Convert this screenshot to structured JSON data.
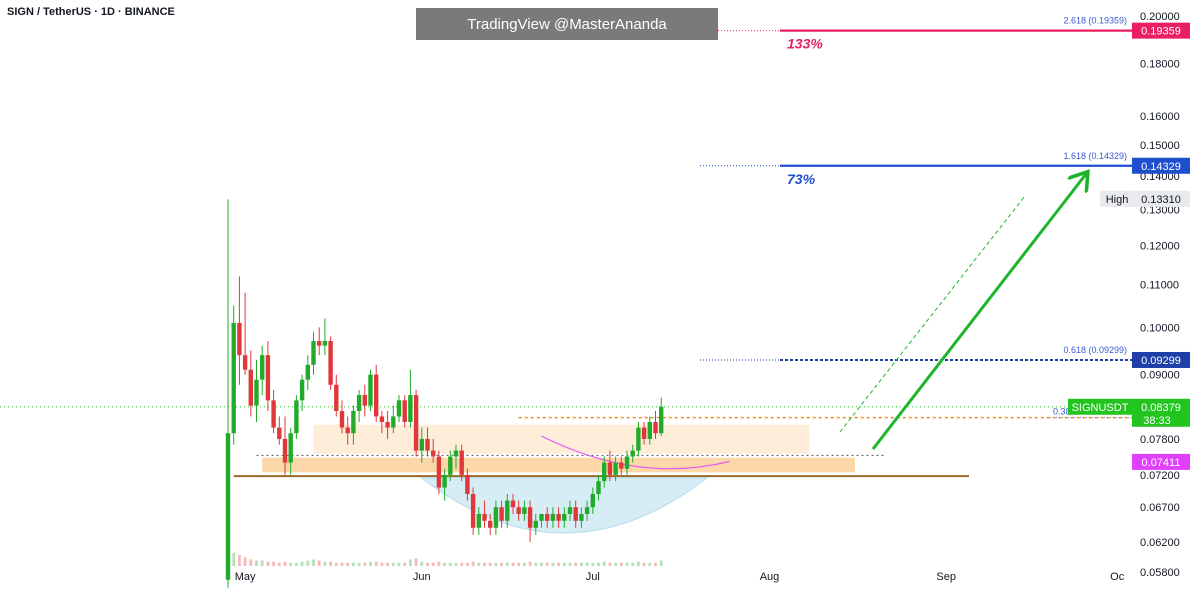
{
  "header": {
    "symbol": "SIGN / TetherUS · 1D · BINANCE",
    "watermark": "TradingView @MasterAnanda"
  },
  "colors": {
    "up": "#22ab2a",
    "down": "#e0383a",
    "fib_2618": "#e91e63",
    "fib_1618": "#1e4fcf",
    "fib_0618": "#1e3fa8",
    "price": "#22c520",
    "arrow": "#1db52b",
    "zone_light": "#fde7cc",
    "zone_dark": "#fbcd93",
    "cup": "#c9e8f3",
    "purple": "#e040fb"
  },
  "chart_data": {
    "type": "candlestick",
    "symbol": "SIGNUSDT",
    "timeframe": "1D",
    "x_axis": {
      "ticks": [
        "May",
        "Jun",
        "Jul",
        "Aug",
        "Sep",
        "Oc"
      ]
    },
    "y_axis": {
      "scale": "log",
      "range": [
        0.056,
        0.205
      ],
      "ticks": [
        0.2,
        0.18,
        0.16,
        0.15,
        0.14,
        0.13,
        0.12,
        0.11,
        0.1,
        0.09,
        0.078,
        0.072,
        0.067,
        0.062,
        0.058
      ],
      "tick_labels": [
        "0.20000",
        "0.18000",
        "0.16000",
        "0.15000",
        "0.14000",
        "0.13000",
        "0.12000",
        "0.11000",
        "0.10000",
        "0.09000",
        "0.07800",
        "0.07200",
        "0.06700",
        "0.06200",
        "0.05800"
      ]
    },
    "fib_levels": [
      {
        "label": "2.618 (0.19359)",
        "value": 0.19359,
        "badge": "0.19359",
        "gain": "133%",
        "color": "#e91e63"
      },
      {
        "label": "1.618 (0.14329)",
        "value": 0.14329,
        "badge": "0.14329",
        "gain": "73%",
        "color": "#1e4fcf"
      },
      {
        "label": "0.618 (0.09299)",
        "value": 0.09299,
        "badge": "0.09299",
        "gain": "",
        "color": "#1e3fa8"
      },
      {
        "label": "0.38",
        "value": 0.0818,
        "badge": "",
        "gain": "",
        "color": "#6f8fe0"
      }
    ],
    "high": {
      "label": "High",
      "value": "0.13310",
      "y": 0.1331
    },
    "current_price": {
      "ticker": "SIGNUSDT",
      "value": 0.08379,
      "label": "0.08379",
      "countdown": "38:33"
    },
    "purple_level": {
      "value": 0.07411,
      "label": "0.07411"
    },
    "support_zones": [
      {
        "name": "light",
        "low": 0.0755,
        "high": 0.0805
      },
      {
        "name": "dark",
        "low": 0.0724,
        "high": 0.0748
      }
    ],
    "support_line": 0.0718,
    "candles": [
      {
        "o": 0.057,
        "h": 0.133,
        "l": 0.056,
        "c": 0.079
      },
      {
        "o": 0.079,
        "h": 0.105,
        "l": 0.077,
        "c": 0.101
      },
      {
        "o": 0.101,
        "h": 0.112,
        "l": 0.088,
        "c": 0.094
      },
      {
        "o": 0.094,
        "h": 0.108,
        "l": 0.09,
        "c": 0.091
      },
      {
        "o": 0.091,
        "h": 0.095,
        "l": 0.082,
        "c": 0.084
      },
      {
        "o": 0.084,
        "h": 0.093,
        "l": 0.081,
        "c": 0.089
      },
      {
        "o": 0.089,
        "h": 0.096,
        "l": 0.086,
        "c": 0.094
      },
      {
        "o": 0.094,
        "h": 0.097,
        "l": 0.083,
        "c": 0.085
      },
      {
        "o": 0.085,
        "h": 0.087,
        "l": 0.079,
        "c": 0.08
      },
      {
        "o": 0.08,
        "h": 0.082,
        "l": 0.077,
        "c": 0.078
      },
      {
        "o": 0.078,
        "h": 0.082,
        "l": 0.072,
        "c": 0.074
      },
      {
        "o": 0.074,
        "h": 0.08,
        "l": 0.072,
        "c": 0.079
      },
      {
        "o": 0.079,
        "h": 0.086,
        "l": 0.078,
        "c": 0.085
      },
      {
        "o": 0.085,
        "h": 0.09,
        "l": 0.083,
        "c": 0.089
      },
      {
        "o": 0.089,
        "h": 0.094,
        "l": 0.087,
        "c": 0.092
      },
      {
        "o": 0.092,
        "h": 0.099,
        "l": 0.09,
        "c": 0.097
      },
      {
        "o": 0.097,
        "h": 0.1,
        "l": 0.094,
        "c": 0.096
      },
      {
        "o": 0.096,
        "h": 0.102,
        "l": 0.094,
        "c": 0.097
      },
      {
        "o": 0.097,
        "h": 0.098,
        "l": 0.087,
        "c": 0.088
      },
      {
        "o": 0.088,
        "h": 0.09,
        "l": 0.082,
        "c": 0.083
      },
      {
        "o": 0.083,
        "h": 0.085,
        "l": 0.079,
        "c": 0.08
      },
      {
        "o": 0.08,
        "h": 0.082,
        "l": 0.077,
        "c": 0.079
      },
      {
        "o": 0.079,
        "h": 0.084,
        "l": 0.077,
        "c": 0.083
      },
      {
        "o": 0.083,
        "h": 0.087,
        "l": 0.081,
        "c": 0.086
      },
      {
        "o": 0.086,
        "h": 0.088,
        "l": 0.082,
        "c": 0.084
      },
      {
        "o": 0.084,
        "h": 0.091,
        "l": 0.083,
        "c": 0.09
      },
      {
        "o": 0.09,
        "h": 0.092,
        "l": 0.081,
        "c": 0.082
      },
      {
        "o": 0.082,
        "h": 0.083,
        "l": 0.079,
        "c": 0.081
      },
      {
        "o": 0.081,
        "h": 0.083,
        "l": 0.078,
        "c": 0.08
      },
      {
        "o": 0.08,
        "h": 0.084,
        "l": 0.079,
        "c": 0.082
      },
      {
        "o": 0.082,
        "h": 0.086,
        "l": 0.081,
        "c": 0.085
      },
      {
        "o": 0.085,
        "h": 0.086,
        "l": 0.08,
        "c": 0.081
      },
      {
        "o": 0.081,
        "h": 0.091,
        "l": 0.08,
        "c": 0.086
      },
      {
        "o": 0.086,
        "h": 0.087,
        "l": 0.075,
        "c": 0.076
      },
      {
        "o": 0.076,
        "h": 0.08,
        "l": 0.074,
        "c": 0.078
      },
      {
        "o": 0.078,
        "h": 0.08,
        "l": 0.075,
        "c": 0.076
      },
      {
        "o": 0.076,
        "h": 0.078,
        "l": 0.074,
        "c": 0.075
      },
      {
        "o": 0.075,
        "h": 0.076,
        "l": 0.069,
        "c": 0.07
      },
      {
        "o": 0.07,
        "h": 0.073,
        "l": 0.068,
        "c": 0.072
      },
      {
        "o": 0.072,
        "h": 0.076,
        "l": 0.071,
        "c": 0.075
      },
      {
        "o": 0.075,
        "h": 0.077,
        "l": 0.073,
        "c": 0.076
      },
      {
        "o": 0.076,
        "h": 0.077,
        "l": 0.071,
        "c": 0.072
      },
      {
        "o": 0.072,
        "h": 0.073,
        "l": 0.068,
        "c": 0.069
      },
      {
        "o": 0.069,
        "h": 0.07,
        "l": 0.063,
        "c": 0.064
      },
      {
        "o": 0.064,
        "h": 0.067,
        "l": 0.063,
        "c": 0.066
      },
      {
        "o": 0.066,
        "h": 0.068,
        "l": 0.064,
        "c": 0.065
      },
      {
        "o": 0.065,
        "h": 0.066,
        "l": 0.063,
        "c": 0.064
      },
      {
        "o": 0.064,
        "h": 0.068,
        "l": 0.063,
        "c": 0.067
      },
      {
        "o": 0.067,
        "h": 0.068,
        "l": 0.064,
        "c": 0.065
      },
      {
        "o": 0.065,
        "h": 0.069,
        "l": 0.064,
        "c": 0.068
      },
      {
        "o": 0.068,
        "h": 0.069,
        "l": 0.066,
        "c": 0.067
      },
      {
        "o": 0.067,
        "h": 0.068,
        "l": 0.065,
        "c": 0.066
      },
      {
        "o": 0.066,
        "h": 0.068,
        "l": 0.065,
        "c": 0.067
      },
      {
        "o": 0.067,
        "h": 0.068,
        "l": 0.062,
        "c": 0.064
      },
      {
        "o": 0.064,
        "h": 0.066,
        "l": 0.063,
        "c": 0.065
      },
      {
        "o": 0.065,
        "h": 0.066,
        "l": 0.064,
        "c": 0.066
      },
      {
        "o": 0.066,
        "h": 0.067,
        "l": 0.064,
        "c": 0.065
      },
      {
        "o": 0.065,
        "h": 0.067,
        "l": 0.064,
        "c": 0.066
      },
      {
        "o": 0.066,
        "h": 0.067,
        "l": 0.064,
        "c": 0.065
      },
      {
        "o": 0.065,
        "h": 0.067,
        "l": 0.064,
        "c": 0.066
      },
      {
        "o": 0.066,
        "h": 0.068,
        "l": 0.065,
        "c": 0.067
      },
      {
        "o": 0.067,
        "h": 0.068,
        "l": 0.064,
        "c": 0.065
      },
      {
        "o": 0.065,
        "h": 0.067,
        "l": 0.064,
        "c": 0.066
      },
      {
        "o": 0.066,
        "h": 0.068,
        "l": 0.065,
        "c": 0.067
      },
      {
        "o": 0.067,
        "h": 0.07,
        "l": 0.066,
        "c": 0.069
      },
      {
        "o": 0.069,
        "h": 0.072,
        "l": 0.068,
        "c": 0.071
      },
      {
        "o": 0.071,
        "h": 0.075,
        "l": 0.07,
        "c": 0.074
      },
      {
        "o": 0.074,
        "h": 0.076,
        "l": 0.071,
        "c": 0.072
      },
      {
        "o": 0.072,
        "h": 0.075,
        "l": 0.071,
        "c": 0.074
      },
      {
        "o": 0.074,
        "h": 0.075,
        "l": 0.072,
        "c": 0.073
      },
      {
        "o": 0.073,
        "h": 0.076,
        "l": 0.072,
        "c": 0.075
      },
      {
        "o": 0.075,
        "h": 0.077,
        "l": 0.074,
        "c": 0.076
      },
      {
        "o": 0.076,
        "h": 0.081,
        "l": 0.075,
        "c": 0.08
      },
      {
        "o": 0.08,
        "h": 0.081,
        "l": 0.077,
        "c": 0.078
      },
      {
        "o": 0.078,
        "h": 0.082,
        "l": 0.077,
        "c": 0.081
      },
      {
        "o": 0.081,
        "h": 0.083,
        "l": 0.078,
        "c": 0.079
      },
      {
        "o": 0.079,
        "h": 0.0855,
        "l": 0.0785,
        "c": 0.0838
      }
    ],
    "volume": [
      9,
      1.2,
      1,
      0.8,
      0.6,
      0.5,
      0.5,
      0.4,
      0.4,
      0.3,
      0.4,
      0.3,
      0.3,
      0.4,
      0.5,
      0.6,
      0.5,
      0.4,
      0.4,
      0.3,
      0.3,
      0.3,
      0.3,
      0.3,
      0.3,
      0.4,
      0.4,
      0.3,
      0.3,
      0.3,
      0.3,
      0.3,
      0.6,
      0.7,
      0.4,
      0.3,
      0.3,
      0.4,
      0.3,
      0.3,
      0.3,
      0.3,
      0.3,
      0.4,
      0.3,
      0.3,
      0.3,
      0.3,
      0.3,
      0.3,
      0.3,
      0.3,
      0.3,
      0.4,
      0.3,
      0.3,
      0.3,
      0.3,
      0.3,
      0.3,
      0.3,
      0.3,
      0.3,
      0.3,
      0.3,
      0.3,
      0.4,
      0.3,
      0.3,
      0.3,
      0.3,
      0.3,
      0.4,
      0.3,
      0.3,
      0.3,
      0.5
    ]
  }
}
